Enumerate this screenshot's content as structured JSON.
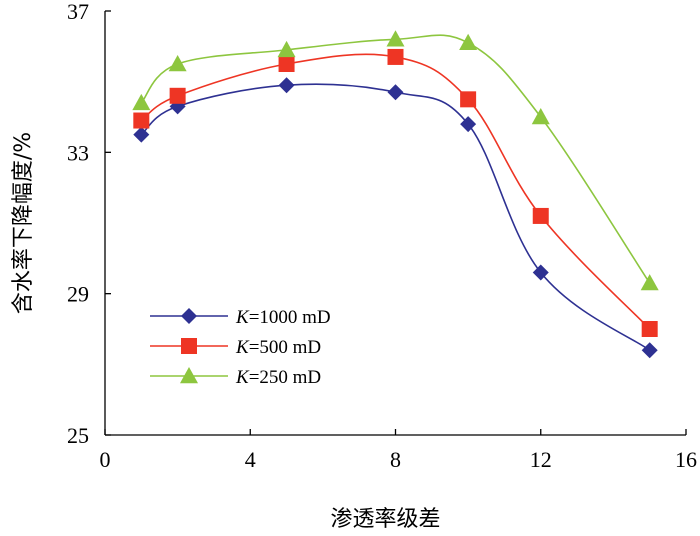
{
  "chart_data": {
    "type": "line",
    "title": "",
    "xlabel": "渗透率级差",
    "ylabel": "含水率下降幅度/%",
    "xlim": [
      0,
      16
    ],
    "ylim": [
      25,
      37
    ],
    "xticks": [
      "0",
      "4",
      "8",
      "12",
      "16"
    ],
    "yticks": [
      "25",
      "29",
      "33",
      "37"
    ],
    "grid": false,
    "legend_position": "bottom-left",
    "x": [
      1,
      2,
      5,
      8,
      10,
      12,
      15
    ],
    "series": [
      {
        "name": "K=1000 mD",
        "legend_prefix": "K",
        "legend_suffix": "=1000 mD",
        "color": "#2e3192",
        "marker": "diamond",
        "values": [
          33.5,
          34.3,
          34.9,
          34.7,
          33.8,
          29.6,
          27.4
        ]
      },
      {
        "name": "K=500 mD",
        "legend_prefix": "K",
        "legend_suffix": "=500 mD",
        "color": "#ee3524",
        "marker": "square",
        "values": [
          33.9,
          34.6,
          35.5,
          35.7,
          34.5,
          31.2,
          28.0
        ]
      },
      {
        "name": "K=250 mD",
        "legend_prefix": "K",
        "legend_suffix": "=250 mD",
        "color": "#8dc63f",
        "marker": "triangle",
        "values": [
          34.4,
          35.5,
          35.9,
          36.2,
          36.1,
          34.0,
          29.3
        ]
      }
    ]
  }
}
